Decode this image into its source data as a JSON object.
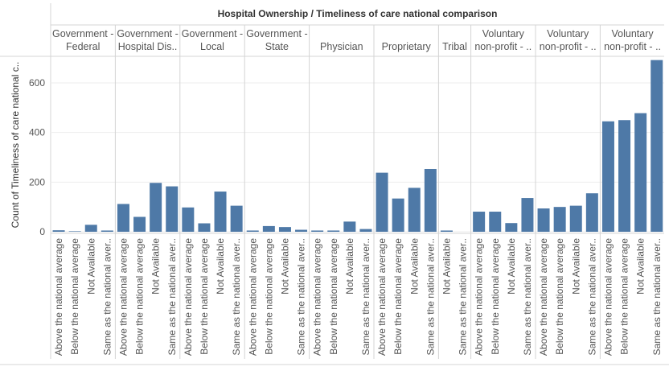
{
  "chart_data": {
    "type": "bar",
    "title": "Hospital Ownership  /  Timeliness of care national comparison",
    "ylabel": "Count of Timeliness of care national c..",
    "xlabel": "",
    "ylim": [
      0,
      700
    ],
    "yticks": [
      0,
      200,
      400,
      600
    ],
    "grid": true,
    "legend": "none",
    "bar_color": "#4e79a7",
    "groups": [
      {
        "label": [
          "Government -",
          "Federal"
        ],
        "categories": [
          "Above the national average",
          "Below the national average",
          "Not Available",
          "Same as the national aver.."
        ],
        "values": [
          6,
          2,
          28,
          5
        ]
      },
      {
        "label": [
          "Government -",
          "Hospital Dis.."
        ],
        "categories": [
          "Above the national average",
          "Below the national average",
          "Not Available",
          "Same as the national aver.."
        ],
        "values": [
          112,
          60,
          197,
          183
        ]
      },
      {
        "label": [
          "Government -",
          "Local"
        ],
        "categories": [
          "Above the national average",
          "Below the national average",
          "Not Available",
          "Same as the national aver.."
        ],
        "values": [
          98,
          34,
          162,
          105
        ]
      },
      {
        "label": [
          "Government -",
          "State"
        ],
        "categories": [
          "Above the national average",
          "Below the national average",
          "Not Available",
          "Same as the national aver.."
        ],
        "values": [
          5,
          23,
          19,
          8
        ]
      },
      {
        "label": [
          "Physician"
        ],
        "categories": [
          "Above the national average",
          "Below the national average",
          "Not Available",
          "Same as the national aver.."
        ],
        "values": [
          5,
          5,
          41,
          11
        ]
      },
      {
        "label": [
          "Proprietary"
        ],
        "categories": [
          "Above the national average",
          "Below the national average",
          "Not Available",
          "Same as the national aver.."
        ],
        "values": [
          238,
          134,
          177,
          253
        ]
      },
      {
        "label": [
          "Tribal"
        ],
        "categories": [
          "Not Available",
          "Same as the national aver.."
        ],
        "values": [
          5,
          0
        ]
      },
      {
        "label": [
          "Voluntary",
          "non-profit - .."
        ],
        "categories": [
          "Above the national average",
          "Below the national average",
          "Not Available",
          "Same as the national aver.."
        ],
        "values": [
          81,
          81,
          35,
          136
        ]
      },
      {
        "label": [
          "Voluntary",
          "non-profit - .."
        ],
        "categories": [
          "Above the national average",
          "Below the national average",
          "Not Available",
          "Same as the national aver.."
        ],
        "values": [
          94,
          100,
          105,
          155
        ]
      },
      {
        "label": [
          "Voluntary",
          "non-profit - .."
        ],
        "categories": [
          "Above the national average",
          "Below the national average",
          "Not Available",
          "Same as the national aver.."
        ],
        "values": [
          445,
          450,
          478,
          692
        ]
      }
    ]
  }
}
